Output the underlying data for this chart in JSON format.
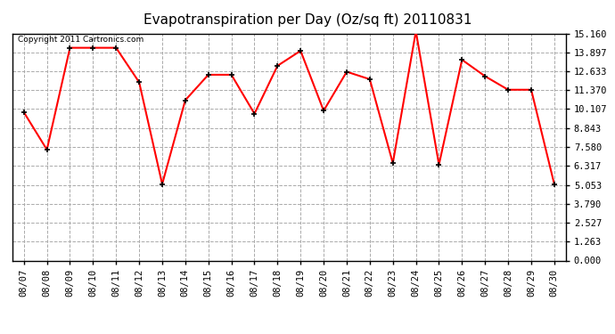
{
  "title": "Evapotranspiration per Day (Oz/sq ft) 20110831",
  "copyright_text": "Copyright 2011 Cartronics.com",
  "x_labels": [
    "08/07",
    "08/08",
    "08/09",
    "08/10",
    "08/11",
    "08/12",
    "08/13",
    "08/14",
    "08/15",
    "08/16",
    "08/17",
    "08/18",
    "08/19",
    "08/20",
    "08/21",
    "08/22",
    "08/23",
    "08/24",
    "08/25",
    "08/26",
    "08/27",
    "08/28",
    "08/29",
    "08/30"
  ],
  "y_values": [
    9.9,
    7.4,
    14.2,
    14.2,
    14.2,
    11.9,
    5.1,
    10.7,
    12.4,
    12.4,
    9.8,
    13.0,
    14.0,
    10.0,
    12.6,
    12.1,
    6.5,
    15.3,
    6.4,
    13.4,
    12.3,
    11.4,
    11.4,
    5.1
  ],
  "line_color": "#ff0000",
  "marker": "+",
  "marker_size": 5,
  "marker_color": "#000000",
  "background_color": "#ffffff",
  "grid_color": "#aaaaaa",
  "y_ticks": [
    0.0,
    1.263,
    2.527,
    3.79,
    5.053,
    6.317,
    7.58,
    8.843,
    10.107,
    11.37,
    12.633,
    13.897,
    15.16
  ],
  "ylim": [
    0.0,
    15.16
  ],
  "title_fontsize": 11,
  "copyright_fontsize": 6.5,
  "tick_fontsize": 7.5,
  "linewidth": 1.5
}
